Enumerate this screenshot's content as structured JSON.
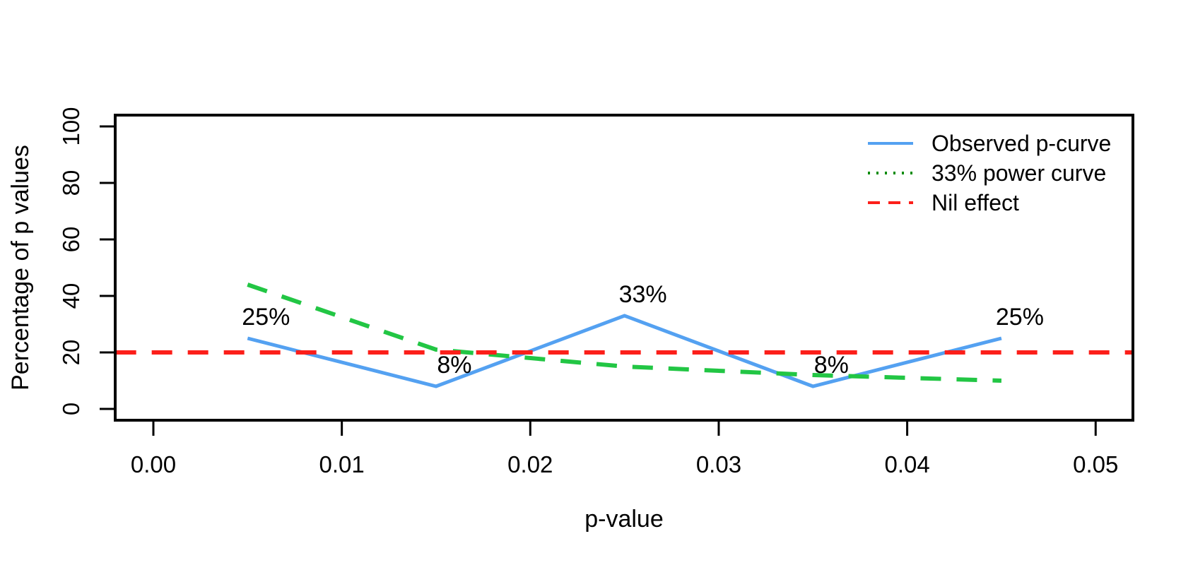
{
  "figure": {
    "background": "#ffffff",
    "border_color": "#000000"
  },
  "chart_data": {
    "type": "line",
    "title": "",
    "xlabel": "p-value",
    "ylabel": "Percentage of p values",
    "xlim": [
      -0.002,
      0.052
    ],
    "ylim": [
      -4,
      104
    ],
    "grid": false,
    "x_ticks": [
      {
        "value": 0.0,
        "label": "0.00"
      },
      {
        "value": 0.01,
        "label": "0.01"
      },
      {
        "value": 0.02,
        "label": "0.02"
      },
      {
        "value": 0.03,
        "label": "0.03"
      },
      {
        "value": 0.04,
        "label": "0.04"
      },
      {
        "value": 0.05,
        "label": "0.05"
      }
    ],
    "y_ticks": [
      {
        "value": 0,
        "label": "0"
      },
      {
        "value": 20,
        "label": "20"
      },
      {
        "value": 40,
        "label": "40"
      },
      {
        "value": 60,
        "label": "60"
      },
      {
        "value": 80,
        "label": "80"
      },
      {
        "value": 100,
        "label": "100"
      }
    ],
    "series": [
      {
        "name": "Observed p-curve",
        "color": "#54a1f1",
        "line_style": "solid",
        "width": 5,
        "x": [
          0.005,
          0.015,
          0.025,
          0.035,
          0.045
        ],
        "values": [
          25,
          8,
          33,
          8,
          25
        ]
      },
      {
        "name": "33% power curve",
        "color": "#22c644",
        "line_style": "dashed",
        "width": 6,
        "x": [
          0.005,
          0.015,
          0.025,
          0.035,
          0.045
        ],
        "values": [
          44,
          21,
          15,
          12,
          10
        ]
      },
      {
        "name": "Nil effect",
        "color": "#fc1f1a",
        "line_style": "dashed",
        "width": 6,
        "x": [
          -0.002,
          0.052
        ],
        "values": [
          20,
          20
        ]
      }
    ],
    "point_labels": [
      {
        "text": "25%",
        "x": 0.005,
        "value": 25
      },
      {
        "text": "8%",
        "x": 0.015,
        "value": 8
      },
      {
        "text": "33%",
        "x": 0.025,
        "value": 33
      },
      {
        "text": "8%",
        "x": 0.035,
        "value": 8
      },
      {
        "text": "25%",
        "x": 0.045,
        "value": 25
      }
    ],
    "legend": {
      "position": "top-right",
      "entries": [
        {
          "label": "Observed p-curve",
          "color": "#54a1f1",
          "line_style": "solid"
        },
        {
          "label": "33% power curve",
          "color": "#008b00",
          "line_style": "dotted"
        },
        {
          "label": "Nil effect",
          "color": "#fc1f1a",
          "line_style": "dashed"
        }
      ]
    }
  }
}
